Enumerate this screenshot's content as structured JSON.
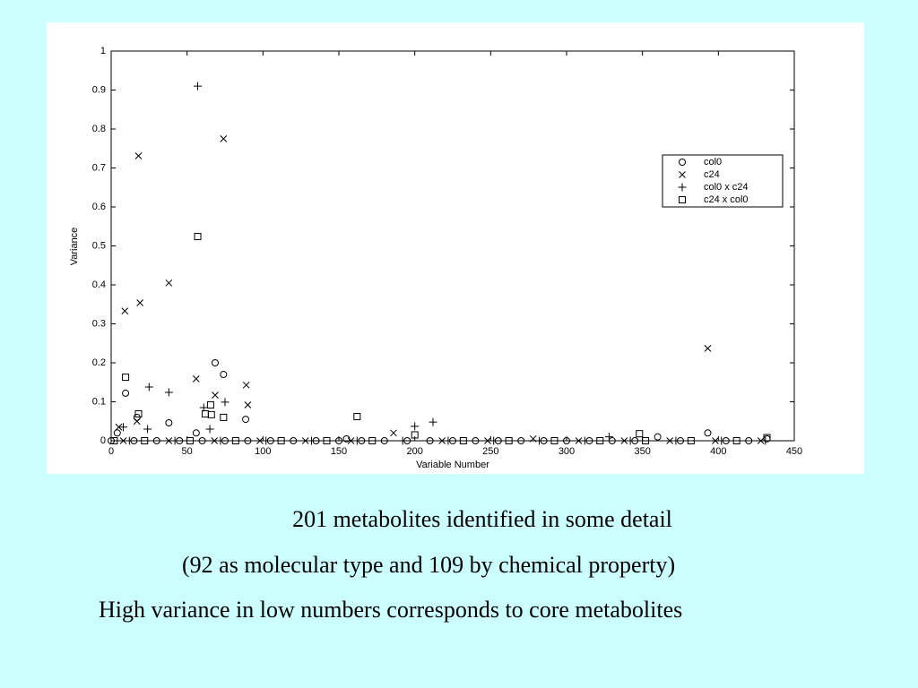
{
  "chart_data": {
    "type": "scatter",
    "xlabel": "Variable Number",
    "ylabel": "Variance",
    "xlim": [
      0,
      450
    ],
    "xticks": [
      0,
      50,
      100,
      150,
      200,
      250,
      300,
      350,
      400,
      450
    ],
    "ylim": [
      0,
      1
    ],
    "yticks": [
      0,
      0.1,
      0.2,
      0.3,
      0.4,
      0.5,
      0.6,
      0.7,
      0.8,
      0.9,
      1
    ],
    "legend": "upper-right",
    "series": [
      {
        "name": "col0",
        "marker": "circle",
        "color": "#000000",
        "x": [
          9.5,
          4,
          17,
          38,
          56,
          68.5,
          74,
          88.6,
          155,
          360,
          393,
          432,
          0,
          15,
          30,
          45,
          60,
          75,
          90,
          105,
          120,
          135,
          150,
          165,
          180,
          195,
          210,
          225,
          240,
          255,
          270,
          285,
          300,
          315,
          330,
          345,
          375,
          405,
          420
        ],
        "values": [
          0.122,
          0.02,
          0.06,
          0.046,
          0.02,
          0.2,
          0.17,
          0.055,
          0.005,
          0.01,
          0.02,
          0.005,
          0,
          0,
          0,
          0,
          0,
          0,
          0,
          0,
          0,
          0,
          0,
          0,
          0,
          0,
          0,
          0,
          0,
          0,
          0,
          0,
          0,
          0,
          0,
          0,
          0,
          0,
          0
        ]
      },
      {
        "name": "c24",
        "marker": "x",
        "color": "#000000",
        "x": [
          9,
          18,
          19,
          38,
          56,
          68.5,
          74,
          89,
          90,
          393,
          5,
          17,
          186,
          278,
          8,
          38,
          68,
          98,
          128,
          158,
          218,
          248,
          308,
          338,
          368,
          398,
          428
        ],
        "values": [
          0.333,
          0.731,
          0.354,
          0.405,
          0.159,
          0.117,
          0.775,
          0.143,
          0.092,
          0.237,
          0.035,
          0.05,
          0.02,
          0.005,
          0,
          0,
          0,
          0,
          0,
          0,
          0,
          0,
          0,
          0,
          0,
          0,
          0
        ]
      },
      {
        "name": "col0 x c24",
        "marker": "plus",
        "color": "#000000",
        "x": [
          57,
          25,
          38,
          61,
          75,
          8,
          24,
          200,
          212,
          328,
          65,
          12,
          42,
          72,
          102,
          132,
          162,
          192,
          222,
          252,
          282,
          312,
          342,
          372,
          402,
          431
        ],
        "values": [
          0.91,
          0.138,
          0.124,
          0.085,
          0.099,
          0.035,
          0.03,
          0.037,
          0.048,
          0.01,
          0.03,
          0,
          0,
          0,
          0,
          0,
          0,
          0,
          0,
          0,
          0,
          0,
          0,
          0,
          0,
          0
        ]
      },
      {
        "name": "c24 x col0",
        "marker": "square",
        "color": "#000000",
        "x": [
          9.5,
          57,
          18,
          65.5,
          62,
          66,
          74,
          162,
          200,
          348,
          432,
          2,
          22,
          52,
          82,
          112,
          142,
          172,
          232,
          262,
          292,
          322,
          352,
          382,
          412
        ],
        "values": [
          0.163,
          0.524,
          0.069,
          0.092,
          0.069,
          0.067,
          0.06,
          0.062,
          0.015,
          0.018,
          0.008,
          0,
          0,
          0,
          0,
          0,
          0,
          0,
          0,
          0,
          0,
          0,
          0,
          0,
          0
        ]
      }
    ]
  },
  "captions": [
    "201 metabolites identified in some detail",
    "(92 as molecular type and 109 by chemical property)",
    "High variance in low numbers corresponds to core metabolites"
  ]
}
